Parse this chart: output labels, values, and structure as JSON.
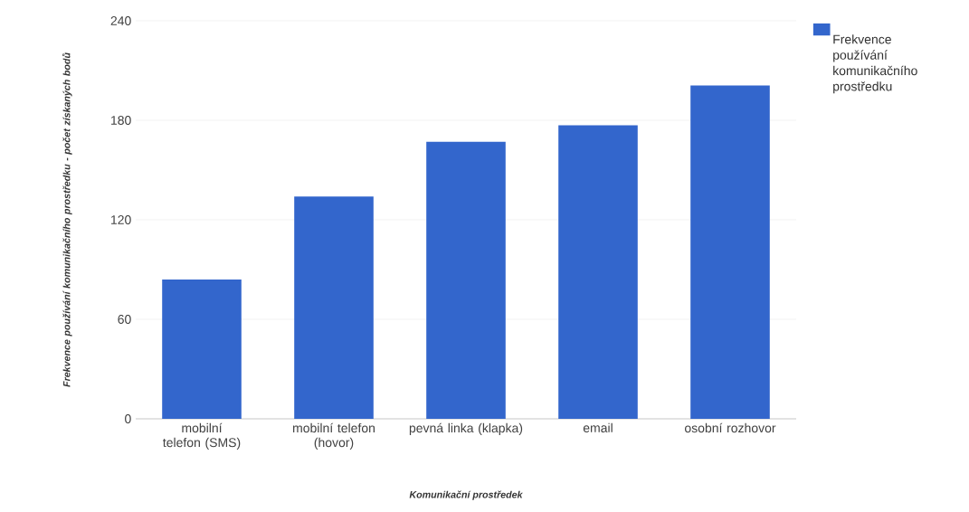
{
  "chart_data": {
    "type": "bar",
    "xlabel": "Komunikační prostředek",
    "ylabel": "Frekvence používání komunikačního prostředku - počet získaných bodů",
    "categories": [
      "mobilní telefon (SMS)",
      "mobilní telefon (hovor)",
      "pevná linka (klapka)",
      "email",
      "osobní rozhovor"
    ],
    "series": [
      {
        "name": "Frekvence používání komunikačního prostředku",
        "color": "#3366cc",
        "values": [
          84,
          134,
          167,
          177,
          201
        ]
      }
    ],
    "ylim": [
      0,
      240
    ],
    "yticks": [
      0,
      60,
      120,
      180,
      240
    ],
    "grid": "y",
    "legend": "top right"
  }
}
